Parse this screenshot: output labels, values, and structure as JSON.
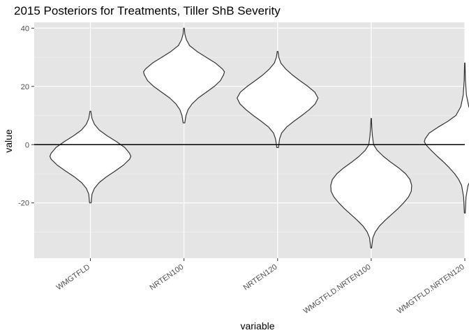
{
  "chart_data": {
    "type": "violin",
    "title": "2015 Posteriors for Treatments, Tiller ShB Severity",
    "xlabel": "variable",
    "ylabel": "value",
    "ylim": [
      -39,
      42
    ],
    "y_ticks": [
      -20,
      0,
      20,
      40
    ],
    "reference_line_y": 0,
    "grid": true,
    "panel_background": "#e5e5e5",
    "categories": [
      "WMGTFLD",
      "NRTEN100",
      "NRTEN120",
      "WMGTFLD.NRTEN100",
      "WMGTFLD.NRTEN120"
    ],
    "series": [
      {
        "category": "WMGTFLD",
        "min": -20,
        "max": 11.5,
        "density": [
          [
            -20,
            0.02
          ],
          [
            -17,
            0.04
          ],
          [
            -15,
            0.1
          ],
          [
            -13,
            0.22
          ],
          [
            -11,
            0.4
          ],
          [
            -9,
            0.62
          ],
          [
            -7,
            0.82
          ],
          [
            -5,
            0.97
          ],
          [
            -4,
            1.0
          ],
          [
            -3,
            0.97
          ],
          [
            -1,
            0.85
          ],
          [
            1,
            0.65
          ],
          [
            3,
            0.42
          ],
          [
            5,
            0.22
          ],
          [
            7,
            0.1
          ],
          [
            9,
            0.04
          ],
          [
            11.5,
            0.01
          ]
        ]
      },
      {
        "category": "NRTEN100",
        "min": 7.5,
        "max": 40,
        "density": [
          [
            7.5,
            0.02
          ],
          [
            10,
            0.05
          ],
          [
            12,
            0.1
          ],
          [
            14,
            0.2
          ],
          [
            16,
            0.35
          ],
          [
            18,
            0.55
          ],
          [
            20,
            0.75
          ],
          [
            22,
            0.9
          ],
          [
            24,
            0.98
          ],
          [
            25,
            1.0
          ],
          [
            26,
            0.95
          ],
          [
            28,
            0.78
          ],
          [
            30,
            0.55
          ],
          [
            32,
            0.32
          ],
          [
            34,
            0.14
          ],
          [
            36,
            0.06
          ],
          [
            38,
            0.02
          ],
          [
            40,
            0.01
          ]
        ]
      },
      {
        "category": "NRTEN120",
        "min": -1,
        "max": 32,
        "density": [
          [
            -1,
            0.02
          ],
          [
            2,
            0.05
          ],
          [
            4,
            0.1
          ],
          [
            6,
            0.22
          ],
          [
            8,
            0.4
          ],
          [
            10,
            0.6
          ],
          [
            12,
            0.78
          ],
          [
            14,
            0.93
          ],
          [
            16,
            1.0
          ],
          [
            18,
            0.92
          ],
          [
            20,
            0.75
          ],
          [
            22,
            0.55
          ],
          [
            24,
            0.36
          ],
          [
            26,
            0.2
          ],
          [
            28,
            0.08
          ],
          [
            30,
            0.03
          ],
          [
            32,
            0.01
          ]
        ]
      },
      {
        "category": "WMGTFLD.NRTEN100",
        "min": -35.5,
        "max": 9,
        "density": [
          [
            -35.5,
            0.01
          ],
          [
            -32,
            0.04
          ],
          [
            -30,
            0.1
          ],
          [
            -28,
            0.2
          ],
          [
            -26,
            0.34
          ],
          [
            -24,
            0.5
          ],
          [
            -22,
            0.66
          ],
          [
            -20,
            0.8
          ],
          [
            -18,
            0.92
          ],
          [
            -16,
            0.99
          ],
          [
            -14,
            1.0
          ],
          [
            -12,
            0.96
          ],
          [
            -10,
            0.85
          ],
          [
            -8,
            0.68
          ],
          [
            -6,
            0.48
          ],
          [
            -4,
            0.3
          ],
          [
            -2,
            0.15
          ],
          [
            0,
            0.06
          ],
          [
            3,
            0.03
          ],
          [
            6,
            0.015
          ],
          [
            9,
            0.005
          ]
        ]
      },
      {
        "category": "WMGTFLD.NRTEN120",
        "min": -23.5,
        "max": 28,
        "density": [
          [
            -23.5,
            0.01
          ],
          [
            -18,
            0.03
          ],
          [
            -14,
            0.08
          ],
          [
            -12,
            0.15
          ],
          [
            -10,
            0.25
          ],
          [
            -8,
            0.38
          ],
          [
            -6,
            0.52
          ],
          [
            -4,
            0.68
          ],
          [
            -2,
            0.83
          ],
          [
            0,
            0.96
          ],
          [
            1,
            1.0
          ],
          [
            2,
            0.98
          ],
          [
            4,
            0.88
          ],
          [
            6,
            0.66
          ],
          [
            8,
            0.42
          ],
          [
            10,
            0.22
          ],
          [
            13,
            0.1
          ],
          [
            17,
            0.04
          ],
          [
            22,
            0.015
          ],
          [
            28,
            0.005
          ]
        ]
      }
    ]
  }
}
